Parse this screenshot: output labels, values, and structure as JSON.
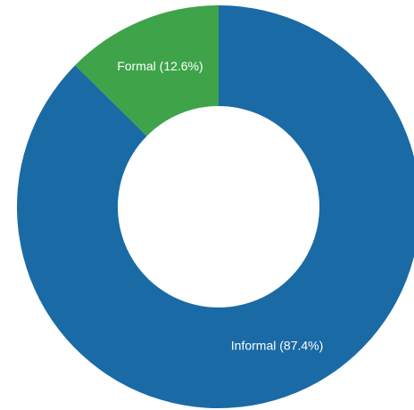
{
  "chart_data": {
    "type": "donut",
    "values": [
      87.4,
      12.6
    ],
    "value_labels": [
      "Informal (87.4%)",
      "Formal (12.6%)"
    ],
    "colors": [
      "#1a6aa6",
      "#3ea349"
    ]
  }
}
